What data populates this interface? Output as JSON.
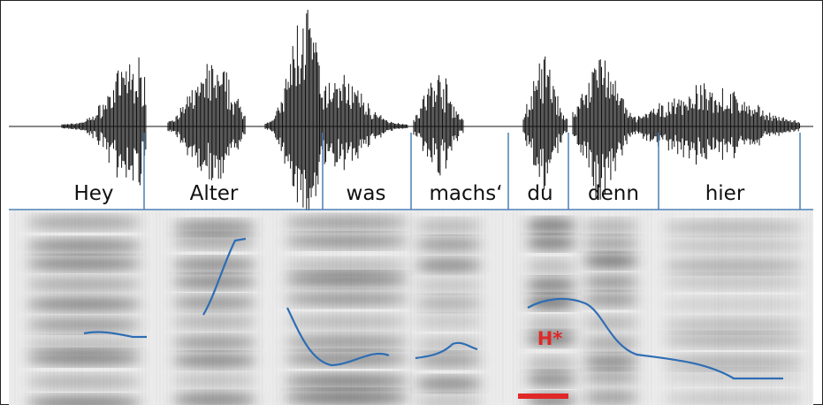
{
  "words": [
    "Hey",
    "Alter",
    "was",
    "machs‘",
    "du",
    "denn",
    "hier"
  ],
  "accent_label": "H*"
}
